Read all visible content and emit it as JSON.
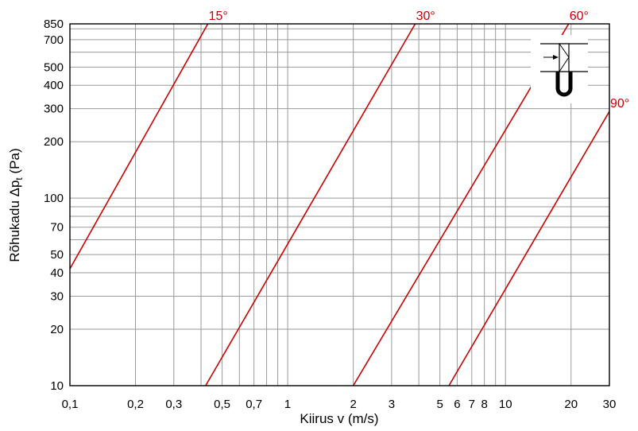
{
  "chart_data": {
    "type": "line",
    "xscale": "log",
    "yscale": "log",
    "xlim": [
      0.1,
      30
    ],
    "ylim": [
      10,
      850
    ],
    "grid": true,
    "xlabel": "Kiirus v (m/s)",
    "ylabel_main": "Rõhukadu ",
    "ylabel_symbol": "Δp",
    "ylabel_sub": "t",
    "ylabel_unit": " (Pa)",
    "x_ticks": [
      {
        "value": 0.1,
        "label": "0,1"
      },
      {
        "value": 0.2,
        "label": "0,2"
      },
      {
        "value": 0.3,
        "label": "0,3"
      },
      {
        "value": 0.5,
        "label": "0,5"
      },
      {
        "value": 0.7,
        "label": "0,7"
      },
      {
        "value": 1,
        "label": "1"
      },
      {
        "value": 2,
        "label": "2"
      },
      {
        "value": 3,
        "label": "3"
      },
      {
        "value": 5,
        "label": "5"
      },
      {
        "value": 6,
        "label": "6"
      },
      {
        "value": 7,
        "label": "7"
      },
      {
        "value": 8,
        "label": "8"
      },
      {
        "value": 10,
        "label": "10"
      },
      {
        "value": 20,
        "label": "20"
      },
      {
        "value": 30,
        "label": "30"
      }
    ],
    "x_grid": [
      0.2,
      0.3,
      0.4,
      0.5,
      0.6,
      0.7,
      0.8,
      0.9,
      1,
      2,
      3,
      4,
      5,
      6,
      7,
      8,
      9,
      10,
      20
    ],
    "y_ticks": [
      {
        "value": 10,
        "label": "10"
      },
      {
        "value": 20,
        "label": "20"
      },
      {
        "value": 30,
        "label": "30"
      },
      {
        "value": 40,
        "label": "40"
      },
      {
        "value": 50,
        "label": "50"
      },
      {
        "value": 70,
        "label": "70"
      },
      {
        "value": 100,
        "label": "100"
      },
      {
        "value": 200,
        "label": "200"
      },
      {
        "value": 300,
        "label": "300"
      },
      {
        "value": 400,
        "label": "400"
      },
      {
        "value": 500,
        "label": "500"
      },
      {
        "value": 700,
        "label": "700"
      },
      {
        "value": 850,
        "label": "850"
      }
    ],
    "y_grid": [
      20,
      30,
      40,
      50,
      60,
      70,
      80,
      90,
      100,
      200,
      300,
      400,
      500,
      600,
      700,
      800
    ],
    "series": [
      {
        "name": "15°",
        "x": [
          0.1,
          0.43
        ],
        "y": [
          42,
          850
        ]
      },
      {
        "name": "30°",
        "x": [
          0.42,
          3.85
        ],
        "y": [
          10,
          850
        ]
      },
      {
        "name": "60°",
        "x": [
          2.0,
          19.5
        ],
        "y": [
          10,
          850
        ]
      },
      {
        "name": "90°",
        "x": [
          5.5,
          30
        ],
        "y": [
          10,
          290
        ]
      }
    ],
    "series_color": "#cc0000",
    "inset_icon": "damper-with-u-tube-manometer"
  }
}
